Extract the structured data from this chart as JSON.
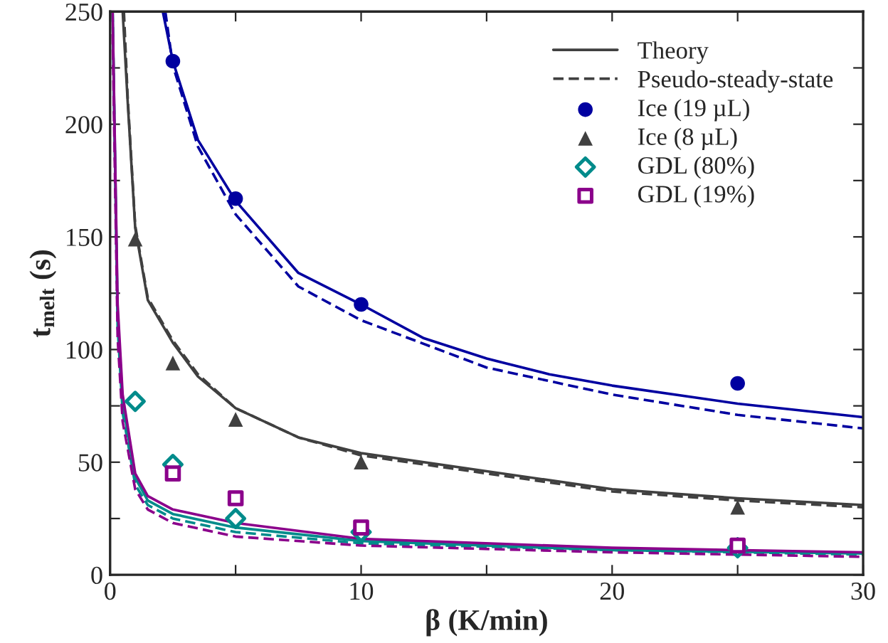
{
  "chart_data": {
    "type": "line",
    "xlabel": "β (K/min)",
    "ylabel": "t$_{melt}$ (s)",
    "xlim": [
      0,
      30
    ],
    "ylim": [
      0,
      250
    ],
    "xticks": [
      0,
      {
        "value": 5,
        "label": null
      },
      10,
      {
        "value": 15,
        "label": null
      },
      20,
      {
        "value": 25,
        "label": null
      },
      30
    ],
    "yticks": [
      0,
      {
        "value": 25,
        "label": null
      },
      50,
      {
        "value": 75,
        "label": null
      },
      100,
      {
        "value": 125,
        "label": null
      },
      150,
      {
        "value": 175,
        "label": null
      },
      200,
      {
        "value": 225,
        "label": null
      },
      250
    ],
    "grid": false,
    "legend": "top right",
    "series": [
      {
        "name": "Theory",
        "line_style": "solid",
        "marker": "none",
        "color": "#404040",
        "x": [
          0.5,
          0.7,
          1,
          1.5,
          2.5,
          3.5,
          5,
          7.5,
          10,
          15,
          20,
          25,
          30
        ],
        "values": [
          250,
          210,
          154,
          122,
          103,
          88,
          74,
          61,
          54,
          46,
          38,
          34,
          31
        ]
      },
      {
        "name": "Pseudo-steady-state",
        "line_style": "dashed",
        "marker": "none",
        "color": "#404040",
        "x": [
          0.55,
          0.7,
          1,
          1.5,
          2.5,
          3.5,
          5,
          7.5,
          10,
          15,
          20,
          25,
          30
        ],
        "values": [
          250,
          212,
          155,
          123,
          104,
          89,
          74,
          61,
          53,
          45,
          37,
          33,
          30
        ]
      },
      {
        "type": "line",
        "line_style": "solid",
        "marker": "none",
        "color": "#0000a0",
        "x": [
          2.1,
          2.5,
          3.5,
          5,
          7.5,
          10,
          12.5,
          15,
          17.5,
          20,
          25,
          30
        ],
        "values": [
          250,
          228,
          193,
          166,
          134,
          120,
          105,
          96,
          89,
          84,
          76,
          70
        ]
      },
      {
        "type": "line",
        "line_style": "dashed",
        "marker": "none",
        "color": "#0000a0",
        "x": [
          2.2,
          2.5,
          3.5,
          5,
          7.5,
          10,
          15,
          20,
          25,
          30
        ],
        "values": [
          250,
          226,
          190,
          160,
          128,
          113,
          92,
          80,
          71,
          65
        ]
      },
      {
        "type": "line",
        "line_style": "solid",
        "marker": "none",
        "color": "#008b8b",
        "x": [
          0.1,
          0.3,
          0.5,
          1,
          1.5,
          2.5,
          5,
          10,
          20,
          30
        ],
        "values": [
          250,
          115,
          76,
          43,
          33,
          27,
          21,
          15,
          11,
          9.5
        ]
      },
      {
        "type": "line",
        "line_style": "dashed",
        "marker": "none",
        "color": "#008b8b",
        "x": [
          0.1,
          0.3,
          0.5,
          1,
          1.5,
          2.5,
          5,
          10,
          20,
          30
        ],
        "values": [
          250,
          110,
          72,
          40,
          31,
          25,
          19,
          14,
          11,
          9
        ]
      },
      {
        "type": "line",
        "line_style": "solid",
        "marker": "none",
        "color": "#8b008b",
        "x": [
          0.1,
          0.3,
          0.5,
          1,
          1.5,
          2.5,
          5,
          10,
          20,
          30
        ],
        "values": [
          250,
          120,
          80,
          45,
          35,
          29,
          23,
          16,
          12,
          10
        ]
      },
      {
        "type": "line",
        "line_style": "dashed",
        "marker": "none",
        "color": "#8b008b",
        "x": [
          0.1,
          0.3,
          0.5,
          1,
          1.5,
          2.5,
          5,
          10,
          20,
          30
        ],
        "values": [
          240,
          105,
          68,
          38,
          29,
          23,
          17,
          13,
          10,
          8
        ]
      },
      {
        "name": "Ice (19 µL)",
        "type": "scatter",
        "marker": "circle",
        "color": "#0000a0",
        "x": [
          2.5,
          5,
          10,
          25
        ],
        "values": [
          228,
          167,
          120,
          85
        ]
      },
      {
        "name": "Ice (8 µL)",
        "type": "scatter",
        "marker": "triangle",
        "color": "#404040",
        "x": [
          1,
          2.5,
          5,
          10,
          25
        ],
        "values": [
          149,
          94,
          69,
          50,
          30
        ]
      },
      {
        "name": "GDL (80%)",
        "type": "scatter",
        "marker": "diamond",
        "color": "#008b8b",
        "x": [
          1,
          2.5,
          5,
          10,
          25
        ],
        "values": [
          77,
          49,
          25,
          19,
          12
        ]
      },
      {
        "name": "GDL (19%)",
        "type": "scatter",
        "marker": "square",
        "color": "#8b008b",
        "x": [
          2.5,
          5,
          10,
          25
        ],
        "values": [
          45,
          34,
          21,
          13
        ]
      }
    ]
  }
}
